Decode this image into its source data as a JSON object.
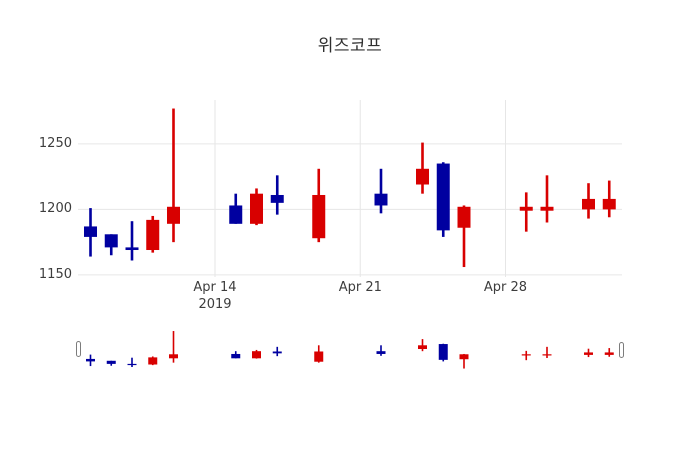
{
  "title": "위즈코프",
  "chart_data": {
    "type": "candlestick",
    "title": "위즈코프",
    "increasing_color": "#d80000",
    "decreasing_color": "#0000a0",
    "grid_color": "#e6e6e6",
    "text_color": "#3d3d3d",
    "background_color": "#ffffff",
    "legend": "none",
    "y_axis": {
      "range_approx": [
        1148,
        1284
      ],
      "ticks": [
        {
          "value": 1150,
          "label": "1150"
        },
        {
          "value": 1200,
          "label": "1200"
        },
        {
          "value": 1250,
          "label": "1250"
        }
      ]
    },
    "x_axis": {
      "ticks": [
        {
          "date": "2019-04-14",
          "label": "Apr 14",
          "sublabel": "2019"
        },
        {
          "date": "2019-04-21",
          "label": "Apr 21",
          "sublabel": ""
        },
        {
          "date": "2019-04-28",
          "label": "Apr 28",
          "sublabel": ""
        }
      ]
    },
    "candles": [
      {
        "date": "2019-04-08",
        "open": 1187,
        "high": 1201,
        "low": 1164,
        "close": 1179
      },
      {
        "date": "2019-04-09",
        "open": 1181,
        "high": 1181,
        "low": 1165,
        "close": 1171
      },
      {
        "date": "2019-04-10",
        "open": 1171,
        "high": 1191,
        "low": 1161,
        "close": 1169
      },
      {
        "date": "2019-04-11",
        "open": 1169,
        "high": 1195,
        "low": 1167,
        "close": 1192
      },
      {
        "date": "2019-04-12",
        "open": 1189,
        "high": 1277,
        "low": 1175,
        "close": 1202
      },
      {
        "date": "2019-04-15",
        "open": 1203,
        "high": 1212,
        "low": 1189,
        "close": 1189
      },
      {
        "date": "2019-04-16",
        "open": 1189,
        "high": 1216,
        "low": 1188,
        "close": 1212
      },
      {
        "date": "2019-04-17",
        "open": 1211,
        "high": 1226,
        "low": 1196,
        "close": 1205
      },
      {
        "date": "2019-04-19",
        "open": 1178,
        "high": 1231,
        "low": 1175,
        "close": 1211
      },
      {
        "date": "2019-04-22",
        "open": 1212,
        "high": 1231,
        "low": 1197,
        "close": 1203
      },
      {
        "date": "2019-04-24",
        "open": 1219,
        "high": 1251,
        "low": 1212,
        "close": 1231
      },
      {
        "date": "2019-04-25",
        "open": 1235,
        "high": 1236,
        "low": 1179,
        "close": 1184
      },
      {
        "date": "2019-04-26",
        "open": 1186,
        "high": 1203,
        "low": 1156,
        "close": 1202
      },
      {
        "date": "2019-04-29",
        "open": 1199,
        "high": 1213,
        "low": 1183,
        "close": 1202
      },
      {
        "date": "2019-04-30",
        "open": 1199,
        "high": 1226,
        "low": 1190,
        "close": 1202
      },
      {
        "date": "2019-05-02",
        "open": 1200,
        "high": 1220,
        "low": 1193,
        "close": 1208
      },
      {
        "date": "2019-05-03",
        "open": 1200,
        "high": 1222,
        "low": 1194,
        "close": 1208
      }
    ],
    "rangeslider_shown": true
  }
}
